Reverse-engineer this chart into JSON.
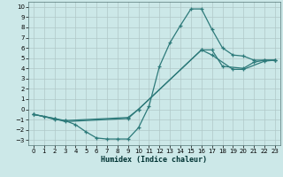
{
  "xlabel": "Humidex (Indice chaleur)",
  "background_color": "#cce8e8",
  "grid_color": "#b0c8c8",
  "line_color": "#2d7a7a",
  "xlim": [
    -0.5,
    23.5
  ],
  "ylim": [
    -3.5,
    10.5
  ],
  "xticks": [
    0,
    1,
    2,
    3,
    4,
    5,
    6,
    7,
    8,
    9,
    10,
    11,
    12,
    13,
    14,
    15,
    16,
    17,
    18,
    19,
    20,
    21,
    22,
    23
  ],
  "yticks": [
    -3,
    -2,
    -1,
    0,
    1,
    2,
    3,
    4,
    5,
    6,
    7,
    8,
    9,
    10
  ],
  "line1_x": [
    0,
    1,
    2,
    3,
    4,
    5,
    6,
    7,
    8,
    9,
    10,
    11,
    12,
    13,
    14,
    15,
    16,
    17,
    18,
    19,
    20,
    21,
    22,
    23
  ],
  "line1_y": [
    -0.5,
    -0.7,
    -1.0,
    -1.1,
    -1.5,
    -2.2,
    -2.8,
    -2.9,
    -2.9,
    -2.9,
    -1.8,
    0.3,
    4.2,
    6.5,
    8.2,
    9.8,
    9.8,
    7.8,
    6.0,
    5.3,
    5.2,
    4.8,
    4.8,
    4.8
  ],
  "line2_x": [
    0,
    2,
    3,
    9,
    10,
    16,
    17,
    18,
    20,
    21,
    22,
    23
  ],
  "line2_y": [
    -0.5,
    -0.9,
    -1.1,
    -0.8,
    0.0,
    5.8,
    5.8,
    4.2,
    4.0,
    4.6,
    4.8,
    4.8
  ],
  "line3_x": [
    0,
    2,
    3,
    9,
    10,
    16,
    17,
    19,
    20,
    22,
    23
  ],
  "line3_y": [
    -0.5,
    -0.9,
    -1.2,
    -0.9,
    0.0,
    5.8,
    5.3,
    3.9,
    3.9,
    4.7,
    4.8
  ]
}
